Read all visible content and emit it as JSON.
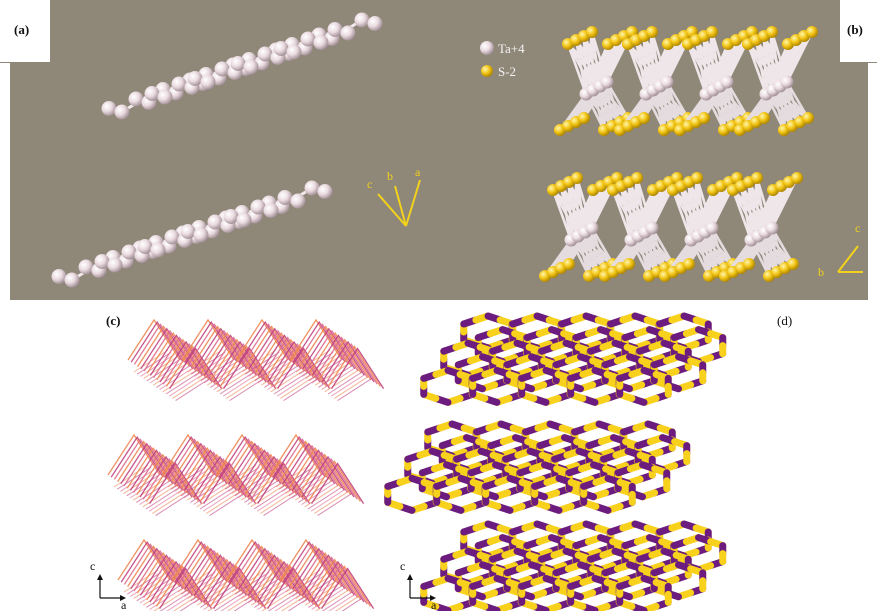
{
  "panels": {
    "a": {
      "label": "(a)"
    },
    "b": {
      "label": "(b)"
    },
    "c": {
      "label": "(c)"
    },
    "d": {
      "label": "(d)"
    }
  },
  "legend": {
    "items": [
      {
        "label": "Ta+4",
        "color": "#e9d6dc"
      },
      {
        "label": "S-2",
        "color": "#f2c515"
      }
    ]
  },
  "axes": {
    "a_panel": {
      "c": "c",
      "b": "b",
      "a": "a"
    },
    "b_panel": {
      "c": "c",
      "b": "b"
    },
    "c_panel": {
      "c": "c",
      "a": "a"
    },
    "d_panel": {
      "c": "c",
      "a": "a"
    }
  },
  "colors": {
    "bg_top": "#8f8778",
    "ta": "#e9d6dc",
    "s": "#f2c515",
    "axis_yellow": "#f2d21a",
    "magenta": "#c0407d",
    "orange": "#ee8650",
    "purple": "#6b1c7e",
    "yellow": "#f7d11c"
  }
}
